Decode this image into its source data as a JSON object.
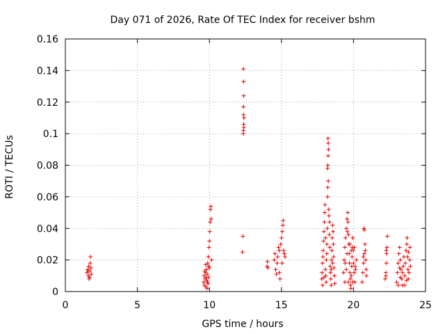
{
  "chart_data": {
    "type": "scatter",
    "title": "Day 071 of 2026, Rate Of TEC Index for receiver bshm",
    "xlabel": "GPS time / hours",
    "ylabel": "ROTI / TECUs",
    "xlim": [
      0,
      25
    ],
    "ylim": [
      0,
      0.16
    ],
    "xticks": [
      0,
      5,
      10,
      15,
      20,
      25
    ],
    "xtick_labels": [
      "0",
      "5",
      "10",
      "15",
      "20",
      "25"
    ],
    "yticks": [
      0,
      0.02,
      0.04,
      0.06,
      0.08,
      0.1,
      0.12,
      0.14,
      0.16
    ],
    "ytick_labels": [
      "0",
      "0.02",
      "0.04",
      "0.06",
      "0.08",
      "0.1",
      "0.12",
      "0.14",
      "0.16"
    ],
    "grid": true,
    "marker": "+",
    "color": "#e00000",
    "series": [
      {
        "name": "ROTI",
        "points": [
          [
            1.5,
            0.012
          ],
          [
            1.55,
            0.014
          ],
          [
            1.6,
            0.01
          ],
          [
            1.62,
            0.016
          ],
          [
            1.65,
            0.008
          ],
          [
            1.7,
            0.013
          ],
          [
            1.72,
            0.018
          ],
          [
            1.75,
            0.022
          ],
          [
            1.78,
            0.015
          ],
          [
            1.8,
            0.011
          ],
          [
            1.68,
            0.009
          ],
          [
            1.58,
            0.013
          ],
          [
            9.6,
            0.006
          ],
          [
            9.62,
            0.01
          ],
          [
            9.65,
            0.004
          ],
          [
            9.7,
            0.008
          ],
          [
            9.72,
            0.012
          ],
          [
            9.75,
            0.003
          ],
          [
            9.78,
            0.009
          ],
          [
            9.8,
            0.014
          ],
          [
            9.82,
            0.007
          ],
          [
            9.85,
            0.011
          ],
          [
            9.88,
            0.018
          ],
          [
            9.9,
            0.005
          ],
          [
            9.92,
            0.022
          ],
          [
            9.95,
            0.016
          ],
          [
            9.97,
            0.028
          ],
          [
            10.0,
            0.032
          ],
          [
            10.02,
            0.038
          ],
          [
            10.05,
            0.044
          ],
          [
            10.08,
            0.052
          ],
          [
            10.1,
            0.054
          ],
          [
            10.12,
            0.046
          ],
          [
            10.15,
            0.02
          ],
          [
            9.68,
            0.013
          ],
          [
            9.84,
            0.002
          ],
          [
            9.93,
            0.009
          ],
          [
            10.0,
            0.015
          ],
          [
            9.74,
            0.017
          ],
          [
            9.86,
            0.006
          ],
          [
            12.3,
            0.025
          ],
          [
            12.32,
            0.035
          ],
          [
            12.35,
            0.1
          ],
          [
            12.36,
            0.102
          ],
          [
            12.38,
            0.106
          ],
          [
            12.4,
            0.11
          ],
          [
            12.37,
            0.112
          ],
          [
            12.36,
            0.117
          ],
          [
            12.38,
            0.124
          ],
          [
            12.37,
            0.133
          ],
          [
            12.36,
            0.141
          ],
          [
            12.39,
            0.104
          ],
          [
            14.0,
            0.016
          ],
          [
            14.03,
            0.019
          ],
          [
            14.06,
            0.015
          ],
          [
            14.5,
            0.02
          ],
          [
            14.55,
            0.024
          ],
          [
            14.6,
            0.014
          ],
          [
            14.65,
            0.011
          ],
          [
            14.7,
            0.018
          ],
          [
            14.75,
            0.022
          ],
          [
            14.8,
            0.028
          ],
          [
            14.85,
            0.012
          ],
          [
            14.9,
            0.008
          ],
          [
            14.95,
            0.03
          ],
          [
            15.0,
            0.034
          ],
          [
            15.05,
            0.038
          ],
          [
            15.1,
            0.042
          ],
          [
            15.12,
            0.045
          ],
          [
            15.15,
            0.026
          ],
          [
            15.2,
            0.024
          ],
          [
            15.25,
            0.022
          ],
          [
            15.05,
            0.018
          ],
          [
            14.85,
            0.026
          ],
          [
            17.8,
            0.008
          ],
          [
            17.82,
            0.012
          ],
          [
            17.85,
            0.018
          ],
          [
            17.88,
            0.022
          ],
          [
            17.9,
            0.026
          ],
          [
            17.92,
            0.032
          ],
          [
            17.95,
            0.038
          ],
          [
            17.98,
            0.044
          ],
          [
            18.0,
            0.05
          ],
          [
            18.02,
            0.055
          ],
          [
            18.05,
            0.014
          ],
          [
            18.08,
            0.01
          ],
          [
            18.1,
            0.006
          ],
          [
            18.12,
            0.02
          ],
          [
            18.15,
            0.03
          ],
          [
            18.18,
            0.04
          ],
          [
            18.2,
            0.06
          ],
          [
            18.22,
            0.066
          ],
          [
            18.25,
            0.07
          ],
          [
            18.2,
            0.078
          ],
          [
            18.22,
            0.08
          ],
          [
            18.24,
            0.086
          ],
          [
            18.26,
            0.09
          ],
          [
            18.25,
            0.094
          ],
          [
            18.23,
            0.097
          ],
          [
            18.28,
            0.052
          ],
          [
            18.3,
            0.048
          ],
          [
            18.32,
            0.036
          ],
          [
            18.35,
            0.028
          ],
          [
            18.38,
            0.016
          ],
          [
            18.4,
            0.012
          ],
          [
            18.42,
            0.008
          ],
          [
            18.45,
            0.004
          ],
          [
            18.48,
            0.02
          ],
          [
            18.5,
            0.026
          ],
          [
            18.52,
            0.034
          ],
          [
            18.55,
            0.042
          ],
          [
            18.58,
            0.038
          ],
          [
            18.6,
            0.03
          ],
          [
            18.62,
            0.022
          ],
          [
            18.65,
            0.015
          ],
          [
            18.68,
            0.01
          ],
          [
            18.7,
            0.005
          ],
          [
            17.86,
            0.004
          ],
          [
            17.95,
            0.009
          ],
          [
            18.14,
            0.024
          ],
          [
            18.34,
            0.044
          ],
          [
            18.46,
            0.014
          ],
          [
            18.56,
            0.018
          ],
          [
            18.06,
            0.034
          ],
          [
            19.3,
            0.012
          ],
          [
            19.35,
            0.02
          ],
          [
            19.4,
            0.028
          ],
          [
            19.45,
            0.034
          ],
          [
            19.5,
            0.04
          ],
          [
            19.55,
            0.046
          ],
          [
            19.6,
            0.05
          ],
          [
            19.62,
            0.044
          ],
          [
            19.65,
            0.036
          ],
          [
            19.68,
            0.03
          ],
          [
            19.7,
            0.024
          ],
          [
            19.72,
            0.018
          ],
          [
            19.75,
            0.012
          ],
          [
            19.78,
            0.008
          ],
          [
            19.8,
            0.004
          ],
          [
            19.82,
            0.002
          ],
          [
            19.85,
            0.01
          ],
          [
            19.88,
            0.016
          ],
          [
            19.9,
            0.022
          ],
          [
            19.92,
            0.028
          ],
          [
            19.95,
            0.034
          ],
          [
            19.98,
            0.026
          ],
          [
            20.0,
            0.018
          ],
          [
            20.05,
            0.012
          ],
          [
            20.1,
            0.006
          ],
          [
            20.15,
            0.014
          ],
          [
            20.2,
            0.02
          ],
          [
            19.4,
            0.006
          ],
          [
            19.5,
            0.014
          ],
          [
            19.55,
            0.024
          ],
          [
            19.65,
            0.006
          ],
          [
            19.75,
            0.03
          ],
          [
            19.85,
            0.026
          ],
          [
            19.95,
            0.006
          ],
          [
            20.05,
            0.028
          ],
          [
            20.12,
            0.016
          ],
          [
            19.58,
            0.038
          ],
          [
            19.42,
            0.018
          ],
          [
            20.6,
            0.006
          ],
          [
            20.65,
            0.012
          ],
          [
            20.7,
            0.018
          ],
          [
            20.75,
            0.024
          ],
          [
            20.8,
            0.03
          ],
          [
            20.82,
            0.026
          ],
          [
            20.85,
            0.02
          ],
          [
            20.88,
            0.014
          ],
          [
            20.9,
            0.01
          ],
          [
            20.72,
            0.04
          ],
          [
            20.75,
            0.039
          ],
          [
            20.68,
            0.022
          ],
          [
            22.2,
            0.008
          ],
          [
            22.25,
            0.012
          ],
          [
            22.28,
            0.018
          ],
          [
            22.3,
            0.024
          ],
          [
            22.32,
            0.028
          ],
          [
            22.35,
            0.035
          ],
          [
            22.28,
            0.026
          ],
          [
            22.25,
            0.01
          ],
          [
            23.0,
            0.006
          ],
          [
            23.05,
            0.012
          ],
          [
            23.1,
            0.018
          ],
          [
            23.15,
            0.024
          ],
          [
            23.2,
            0.028
          ],
          [
            23.25,
            0.02
          ],
          [
            23.3,
            0.014
          ],
          [
            23.35,
            0.008
          ],
          [
            23.4,
            0.004
          ],
          [
            23.45,
            0.016
          ],
          [
            23.5,
            0.022
          ],
          [
            23.55,
            0.01
          ],
          [
            23.6,
            0.018
          ],
          [
            23.65,
            0.026
          ],
          [
            23.7,
            0.03
          ],
          [
            23.72,
            0.034
          ],
          [
            23.75,
            0.022
          ],
          [
            23.78,
            0.014
          ],
          [
            23.8,
            0.008
          ],
          [
            23.85,
            0.012
          ],
          [
            23.9,
            0.02
          ],
          [
            23.92,
            0.028
          ],
          [
            23.95,
            0.016
          ],
          [
            23.1,
            0.004
          ],
          [
            23.25,
            0.009
          ],
          [
            23.4,
            0.012
          ],
          [
            23.55,
            0.004
          ],
          [
            23.68,
            0.007
          ],
          [
            23.82,
            0.025
          ],
          [
            23.2,
            0.015
          ]
        ]
      }
    ]
  }
}
